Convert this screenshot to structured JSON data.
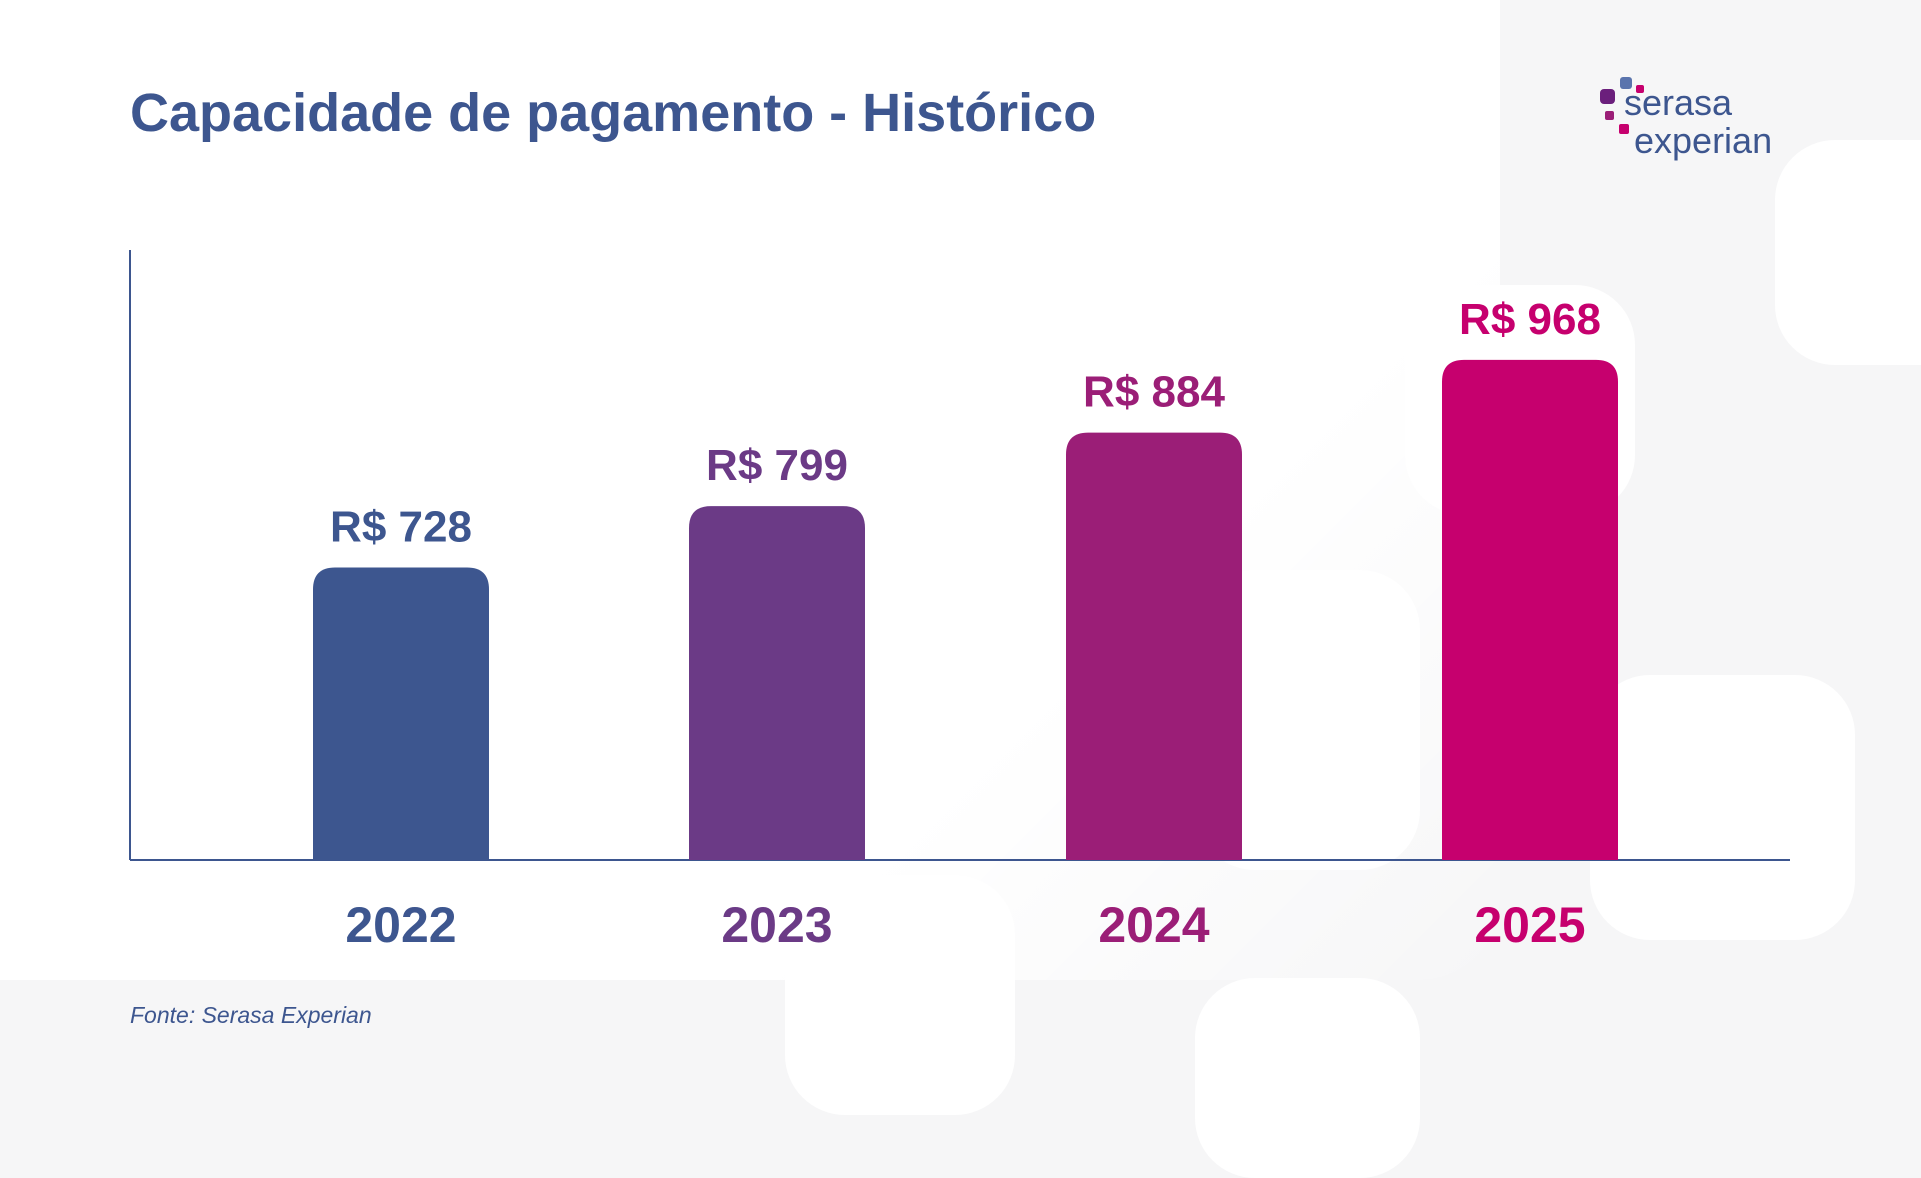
{
  "title": "Capacidade de pagamento - Histórico",
  "source": "Fonte: Serasa Experian",
  "logo": {
    "line1": "serasa",
    "line2": "experian"
  },
  "chart_data": {
    "type": "bar",
    "title": "Capacidade de pagamento - Histórico",
    "categories": [
      "2022",
      "2023",
      "2024",
      "2025"
    ],
    "values": [
      728,
      799,
      884,
      968
    ],
    "labels": [
      "R$ 728",
      "R$ 799",
      "R$ 884",
      "R$ 968"
    ],
    "colors": [
      "#3d568f",
      "#6b3a86",
      "#9b1e77",
      "#c6006e"
    ],
    "xlabel": "",
    "ylabel": "",
    "ylim": [
      390,
      1095
    ],
    "grid": false
  }
}
